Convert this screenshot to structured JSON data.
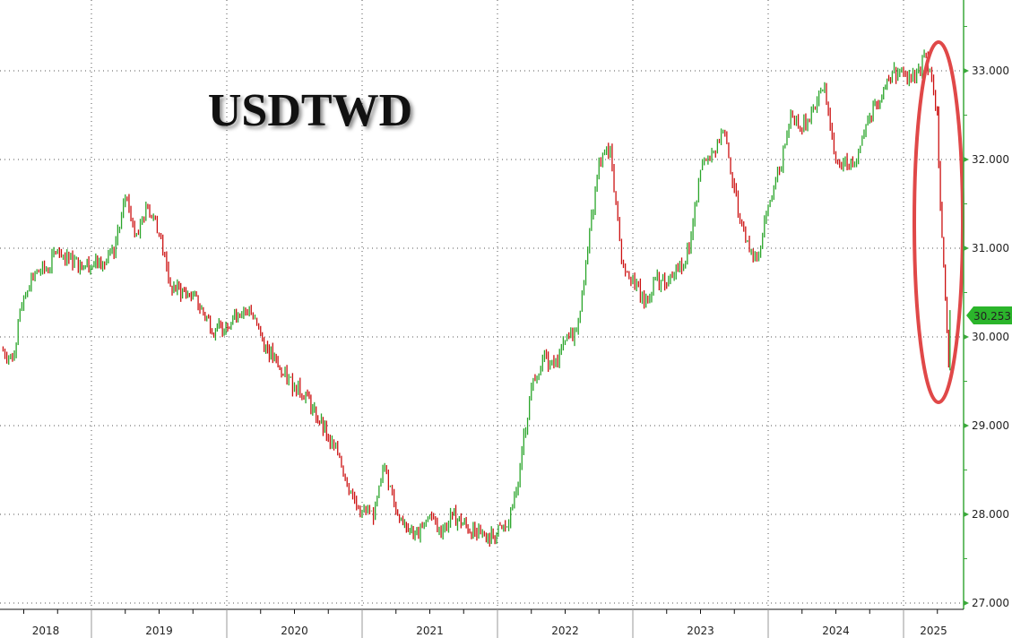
{
  "chart_data": {
    "type": "line",
    "title": "USDTWD",
    "xlabel": "",
    "ylabel": "",
    "ylim": [
      27.0,
      33.6
    ],
    "y_ticks": [
      "27.000",
      "28.000",
      "29.000",
      "30.000",
      "31.000",
      "32.000",
      "33.000"
    ],
    "x_ticks": [
      "2018",
      "2019",
      "2020",
      "2021",
      "2022",
      "2023",
      "2024",
      "2025"
    ],
    "grid": true,
    "axis_position": "right",
    "last_value_label": "30.253",
    "colors": {
      "up": "#2aa52a",
      "down": "#cc1111",
      "axis": "#3aa83a",
      "annotation": "#e04848",
      "last_tag": "#2bb52b"
    },
    "series": [
      {
        "points": [
          [
            "2018-05",
            29.86
          ],
          [
            "2018-06",
            29.76
          ],
          [
            "2018-07",
            30.46
          ],
          [
            "2018-08",
            30.72
          ],
          [
            "2018-09",
            30.77
          ],
          [
            "2018-10",
            30.97
          ],
          [
            "2018-11",
            30.87
          ],
          [
            "2018-12",
            30.82
          ],
          [
            "2019-02",
            30.82
          ],
          [
            "2019-03",
            30.92
          ],
          [
            "2019-04",
            31.58
          ],
          [
            "2019-05",
            31.17
          ],
          [
            "2019-06",
            31.47
          ],
          [
            "2019-07",
            31.17
          ],
          [
            "2019-08",
            30.57
          ],
          [
            "2019-10",
            30.46
          ],
          [
            "2019-12",
            30.06
          ],
          [
            "2020-02",
            30.26
          ],
          [
            "2020-03",
            30.31
          ],
          [
            "2020-04",
            30.01
          ],
          [
            "2020-06",
            29.56
          ],
          [
            "2020-07",
            29.45
          ],
          [
            "2020-08",
            29.35
          ],
          [
            "2020-10",
            28.85
          ],
          [
            "2020-11",
            28.65
          ],
          [
            "2020-12",
            28.24
          ],
          [
            "2021-01",
            28.04
          ],
          [
            "2021-02",
            27.94
          ],
          [
            "2021-03",
            28.55
          ],
          [
            "2021-04",
            28.04
          ],
          [
            "2021-06",
            27.74
          ],
          [
            "2021-07",
            27.99
          ],
          [
            "2021-08",
            27.74
          ],
          [
            "2021-09",
            27.99
          ],
          [
            "2021-11",
            27.79
          ],
          [
            "2021-12",
            27.69
          ],
          [
            "2022-02",
            27.89
          ],
          [
            "2022-03",
            28.55
          ],
          [
            "2022-04",
            29.45
          ],
          [
            "2022-05",
            29.76
          ],
          [
            "2022-06",
            29.66
          ],
          [
            "2022-07",
            29.96
          ],
          [
            "2022-08",
            30.06
          ],
          [
            "2022-09",
            30.97
          ],
          [
            "2022-10",
            31.98
          ],
          [
            "2022-11",
            32.13
          ],
          [
            "2022-12",
            30.87
          ],
          [
            "2023-01",
            30.67
          ],
          [
            "2023-02",
            30.36
          ],
          [
            "2023-03",
            30.67
          ],
          [
            "2023-04",
            30.57
          ],
          [
            "2023-05",
            30.77
          ],
          [
            "2023-06",
            30.97
          ],
          [
            "2023-07",
            31.88
          ],
          [
            "2023-08",
            32.08
          ],
          [
            "2023-09",
            32.33
          ],
          [
            "2023-10",
            31.68
          ],
          [
            "2023-11",
            31.07
          ],
          [
            "2023-12",
            30.87
          ],
          [
            "2024-01",
            31.47
          ],
          [
            "2024-02",
            31.88
          ],
          [
            "2024-03",
            32.54
          ],
          [
            "2024-04",
            32.33
          ],
          [
            "2024-05",
            32.59
          ],
          [
            "2024-06",
            32.84
          ],
          [
            "2024-07",
            31.98
          ],
          [
            "2024-08",
            31.93
          ],
          [
            "2024-09",
            32.08
          ],
          [
            "2024-10",
            32.49
          ],
          [
            "2024-12",
            32.99
          ],
          [
            "2025-01",
            32.99
          ],
          [
            "2025-02",
            32.89
          ],
          [
            "2025-03",
            33.19
          ],
          [
            "2025-04",
            32.54
          ],
          [
            "2025-04",
            31.93
          ],
          [
            "2025-05",
            29.66
          ],
          [
            "2025-05",
            30.253
          ]
        ]
      }
    ]
  }
}
